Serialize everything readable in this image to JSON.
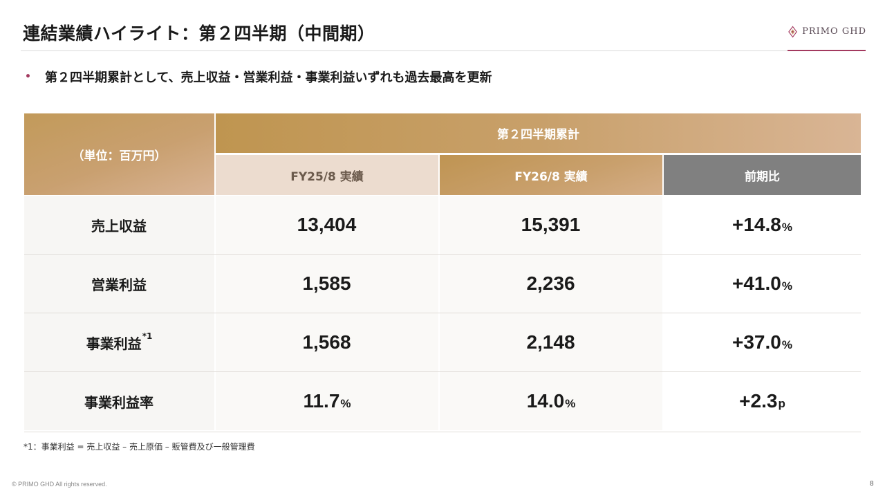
{
  "header": {
    "title": "連結業績ハイライト：第２四半期（中間期）",
    "logo_text": "PRIMO GHD",
    "logo_icon": "diamond-emblem-icon"
  },
  "bullet": {
    "text": "第２四半期累計として、売上収益・営業利益・事業利益いずれも過去最高を更新"
  },
  "table": {
    "unit_label": "（単位：百万円）",
    "period_label": "第２四半期累計",
    "columns": [
      "FY25/8 実績",
      "FY26/8 実績",
      "前期比"
    ],
    "rows": [
      {
        "label": "売上収益",
        "sup": "",
        "fy25": "13,404",
        "fy25_unit": "",
        "fy26": "15,391",
        "fy26_unit": "",
        "ratio": "+14.8",
        "ratio_unit": "%"
      },
      {
        "label": "営業利益",
        "sup": "",
        "fy25": "1,585",
        "fy25_unit": "",
        "fy26": "2,236",
        "fy26_unit": "",
        "ratio": "+41.0",
        "ratio_unit": "%"
      },
      {
        "label": "事業利益",
        "sup": "*1",
        "fy25": "1,568",
        "fy25_unit": "",
        "fy26": "2,148",
        "fy26_unit": "",
        "ratio": "+37.0",
        "ratio_unit": "%"
      },
      {
        "label": "事業利益率",
        "sup": "",
        "fy25": "11.7",
        "fy25_unit": "%",
        "fy26": "14.0",
        "fy26_unit": "%",
        "ratio": "+2.3",
        "ratio_unit": "p"
      }
    ]
  },
  "footnote": "*1：事業利益 = 売上収益 – 売上原価 – 販管費及び一般管理費",
  "footer": {
    "copyright": "© PRIMO GHD All rights reserved.",
    "page": "8"
  },
  "colors": {
    "accent": "#a3395f",
    "gold": "#c29a5a",
    "gray_header": "#808080"
  }
}
